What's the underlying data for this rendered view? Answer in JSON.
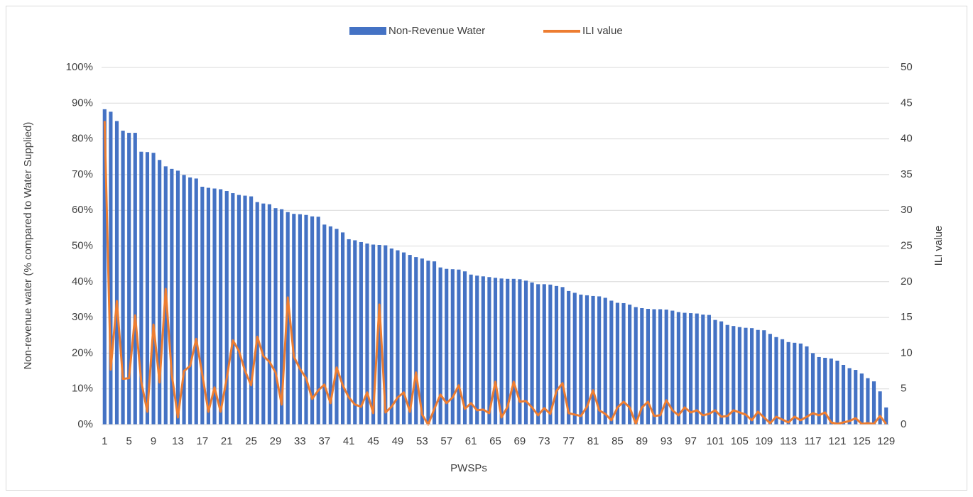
{
  "chart_data": {
    "type": "bar_line",
    "x_label": "PWSPs",
    "y_label": "Non-revenue water (% compared to Water Supplied)",
    "y2_label": "ILI value",
    "legend": "top",
    "grid": true,
    "categories": [
      "1",
      null,
      null,
      null,
      "5",
      null,
      null,
      null,
      "9",
      null,
      null,
      null,
      "13",
      null,
      null,
      null,
      "17",
      null,
      null,
      null,
      "21",
      null,
      null,
      null,
      "25",
      null,
      null,
      null,
      "29",
      null,
      null,
      null,
      "33",
      null,
      null,
      null,
      "37",
      null,
      null,
      null,
      "41",
      null,
      null,
      null,
      "45",
      null,
      null,
      null,
      "49",
      null,
      null,
      null,
      "53",
      null,
      null,
      null,
      "57",
      null,
      null,
      null,
      "61",
      null,
      null,
      null,
      "65",
      null,
      null,
      null,
      "69",
      null,
      null,
      null,
      "73",
      null,
      null,
      null,
      "77",
      null,
      null,
      null,
      "81",
      null,
      null,
      null,
      "85",
      null,
      null,
      null,
      "89",
      null,
      null,
      null,
      "93",
      null,
      null,
      null,
      "97",
      null,
      null,
      null,
      "101",
      null,
      null,
      null,
      "105",
      null,
      null,
      null,
      "109",
      null,
      null,
      null,
      "113",
      null,
      null,
      null,
      "117",
      null,
      null,
      null,
      "121",
      null,
      null,
      null,
      "125",
      null,
      null,
      null,
      "129"
    ],
    "ylim": [
      0,
      100
    ],
    "yticks": [
      {
        "value": 0,
        "label": "0%"
      },
      {
        "value": 10,
        "label": "10%"
      },
      {
        "value": 20,
        "label": "20%"
      },
      {
        "value": 30,
        "label": "30%"
      },
      {
        "value": 40,
        "label": "40%"
      },
      {
        "value": 50,
        "label": "50%"
      },
      {
        "value": 60,
        "label": "60%"
      },
      {
        "value": 70,
        "label": "70%"
      },
      {
        "value": 80,
        "label": "80%"
      },
      {
        "value": 90,
        "label": "90%"
      },
      {
        "value": 100,
        "label": "100%"
      }
    ],
    "y2lim": [
      0,
      50
    ],
    "y2ticks": [
      0,
      5,
      10,
      15,
      20,
      25,
      30,
      35,
      40,
      45,
      50
    ],
    "series": [
      {
        "name": "Non-Revenue Water",
        "color": "#4472c4",
        "kind": "bar",
        "values": [
          88.3,
          87.6,
          85,
          82.3,
          81.7,
          81.7,
          76.4,
          76.3,
          76.1,
          74.1,
          72.3,
          71.6,
          71.1,
          69.9,
          69.2,
          68.9,
          66.6,
          66.3,
          66.1,
          65.9,
          65.4,
          64.8,
          64.3,
          64.1,
          63.9,
          62.3,
          61.9,
          61.7,
          60.6,
          60.3,
          59.5,
          59,
          58.9,
          58.7,
          58.3,
          58.2,
          56,
          55.5,
          54.8,
          53.8,
          51.9,
          51.6,
          51.1,
          50.7,
          50.4,
          50.3,
          50.2,
          49.3,
          48.8,
          48.2,
          47.5,
          46.9,
          46.5,
          45.9,
          45.7,
          44,
          43.6,
          43.5,
          43.4,
          42.9,
          42,
          41.7,
          41.5,
          41.3,
          41.1,
          40.9,
          40.8,
          40.8,
          40.7,
          40.3,
          39.8,
          39.3,
          39.3,
          39.2,
          38.8,
          38.5,
          37.4,
          36.9,
          36.4,
          36.2,
          36,
          35.9,
          35.5,
          34.7,
          34.1,
          34,
          33.6,
          32.9,
          32.6,
          32.4,
          32.3,
          32.3,
          32.2,
          31.9,
          31.5,
          31.3,
          31.2,
          31.1,
          30.8,
          30.7,
          29.3,
          28.9,
          27.9,
          27.6,
          27.3,
          27.1,
          27,
          26.5,
          26.4,
          25.4,
          24.5,
          23.9,
          23.1,
          22.9,
          22.7,
          21.9,
          20,
          18.9,
          18.7,
          18.5,
          17.9,
          16.7,
          15.8,
          15.3,
          14.3,
          13,
          12.1,
          9.3,
          4.8
        ]
      },
      {
        "name": "ILI value",
        "color": "#ed7d31",
        "kind": "line",
        "axis": "y2",
        "values": [
          42.5,
          7.7,
          17.3,
          6.4,
          6.5,
          15.3,
          6,
          1.8,
          14,
          5.9,
          19,
          7,
          1,
          7.5,
          8.2,
          12,
          7,
          1.8,
          5.2,
          1.8,
          6.5,
          11.8,
          10.3,
          7.5,
          5.5,
          12.3,
          9.6,
          8.8,
          7.3,
          2.8,
          17.8,
          9.5,
          7.8,
          6.5,
          3.6,
          4.8,
          5.6,
          3,
          8,
          5.5,
          3.8,
          2.8,
          2.5,
          4.5,
          1.6,
          16.8,
          1.7,
          2.5,
          3.8,
          4.5,
          1.8,
          7.3,
          1.4,
          0,
          2.2,
          4.2,
          3,
          3.8,
          5.5,
          2.2,
          3,
          2,
          2.1,
          1.6,
          6,
          1,
          2.5,
          6,
          3.2,
          3.3,
          2.4,
          1.3,
          2.3,
          1.5,
          4.7,
          5.8,
          1.6,
          1.4,
          1.2,
          2.5,
          4.8,
          2,
          1.5,
          0.6,
          2.4,
          3.2,
          2.4,
          0.1,
          2.4,
          3.2,
          1.2,
          1.3,
          3.4,
          2,
          1.3,
          2.4,
          1.7,
          2,
          1.3,
          1.5,
          2,
          1.1,
          1.2,
          2,
          1.7,
          1.4,
          0.6,
          1.8,
          1,
          0.2,
          1.1,
          0.7,
          0.3,
          1.1,
          0.6,
          1.1,
          1.6,
          1.3,
          1.7,
          0.3,
          0.1,
          0.3,
          0.5,
          0.9,
          0.1,
          0.2,
          0.1,
          1.2,
          0.1
        ]
      }
    ]
  }
}
